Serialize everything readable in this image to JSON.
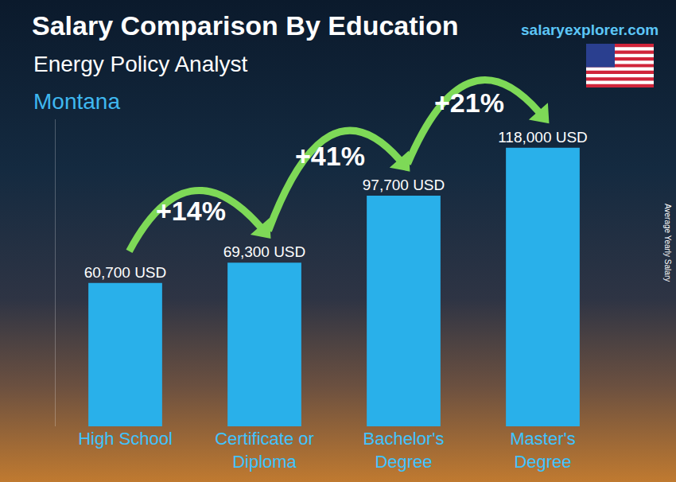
{
  "chart_data": {
    "type": "bar",
    "title": "Salary Comparison By Education",
    "subtitle": "Energy Policy Analyst",
    "location": "Montana",
    "source": "salaryexplorer.com",
    "y_label": "Average Yearly Salary",
    "categories": [
      "High School",
      "Certificate or Diploma",
      "Bachelor's Degree",
      "Master's Degree"
    ],
    "values": [
      60700,
      69300,
      97700,
      118000
    ],
    "value_labels": [
      "60,700 USD",
      "69,300 USD",
      "97,700 USD",
      "118,000 USD"
    ],
    "annotations": [
      "+14%",
      "+41%",
      "+21%"
    ],
    "color": "#29b0ea",
    "ylim": [
      0,
      130000
    ],
    "data_labels": true,
    "tick_labels": "x",
    "grid": false
  }
}
